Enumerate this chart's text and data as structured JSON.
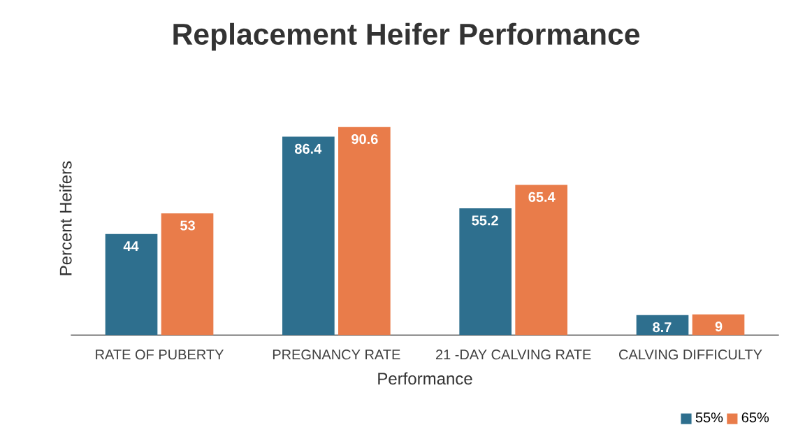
{
  "chart_data": {
    "type": "bar",
    "title": "Replacement Heifer Performance",
    "xlabel": "Performance",
    "ylabel": "Percent Heifers",
    "categories": [
      "RATE OF PUBERTY",
      "PREGNANCY RATE",
      "21 -DAY CALVING RATE",
      "CALVING DIFFICULTY"
    ],
    "series": [
      {
        "name": "55%",
        "color": "#2e6f8e",
        "values": [
          44,
          86.4,
          55.2,
          8.7
        ]
      },
      {
        "name": "65%",
        "color": "#e97c4a",
        "values": [
          53,
          90.6,
          65.4,
          9
        ]
      }
    ],
    "tick_labels": "x",
    "data_labels": true,
    "legend": "bottom right"
  }
}
